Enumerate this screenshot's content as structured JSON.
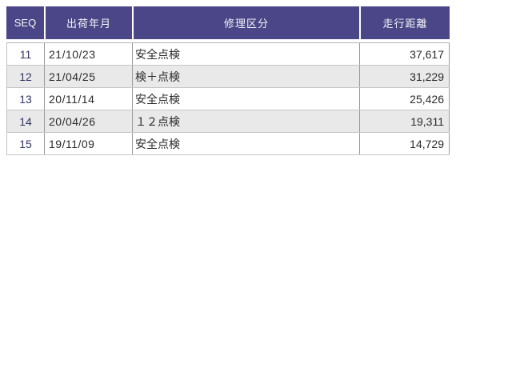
{
  "table": {
    "title": "service-history-table",
    "colors": {
      "header_bg": "#4a4687",
      "header_text": "#f5f5f8",
      "seq_text": "#333366",
      "body_text": "#2b2b2b",
      "row_bg": "#ffffff",
      "alt_row_bg": "#e9e9e9",
      "border_vertical": "#9a9a9a",
      "border_horizontal": "#c6c6c6"
    },
    "columns": [
      {
        "key": "seq",
        "label": "SEQ"
      },
      {
        "key": "ship_date",
        "label": "出荷年月"
      },
      {
        "key": "repair_type",
        "label": "修理区分"
      },
      {
        "key": "mileage",
        "label": "走行距離"
      }
    ],
    "rows": [
      {
        "seq": "11",
        "ship_date": "21/10/23",
        "repair_type": "安全点検",
        "mileage": "37,617"
      },
      {
        "seq": "12",
        "ship_date": "21/04/25",
        "repair_type": "検＋点検",
        "mileage": "31,229"
      },
      {
        "seq": "13",
        "ship_date": "20/11/14",
        "repair_type": "安全点検",
        "mileage": "25,426"
      },
      {
        "seq": "14",
        "ship_date": "20/04/26",
        "repair_type": "１２点検",
        "mileage": "19,311"
      },
      {
        "seq": "15",
        "ship_date": "19/11/09",
        "repair_type": "安全点検",
        "mileage": "14,729"
      }
    ]
  }
}
